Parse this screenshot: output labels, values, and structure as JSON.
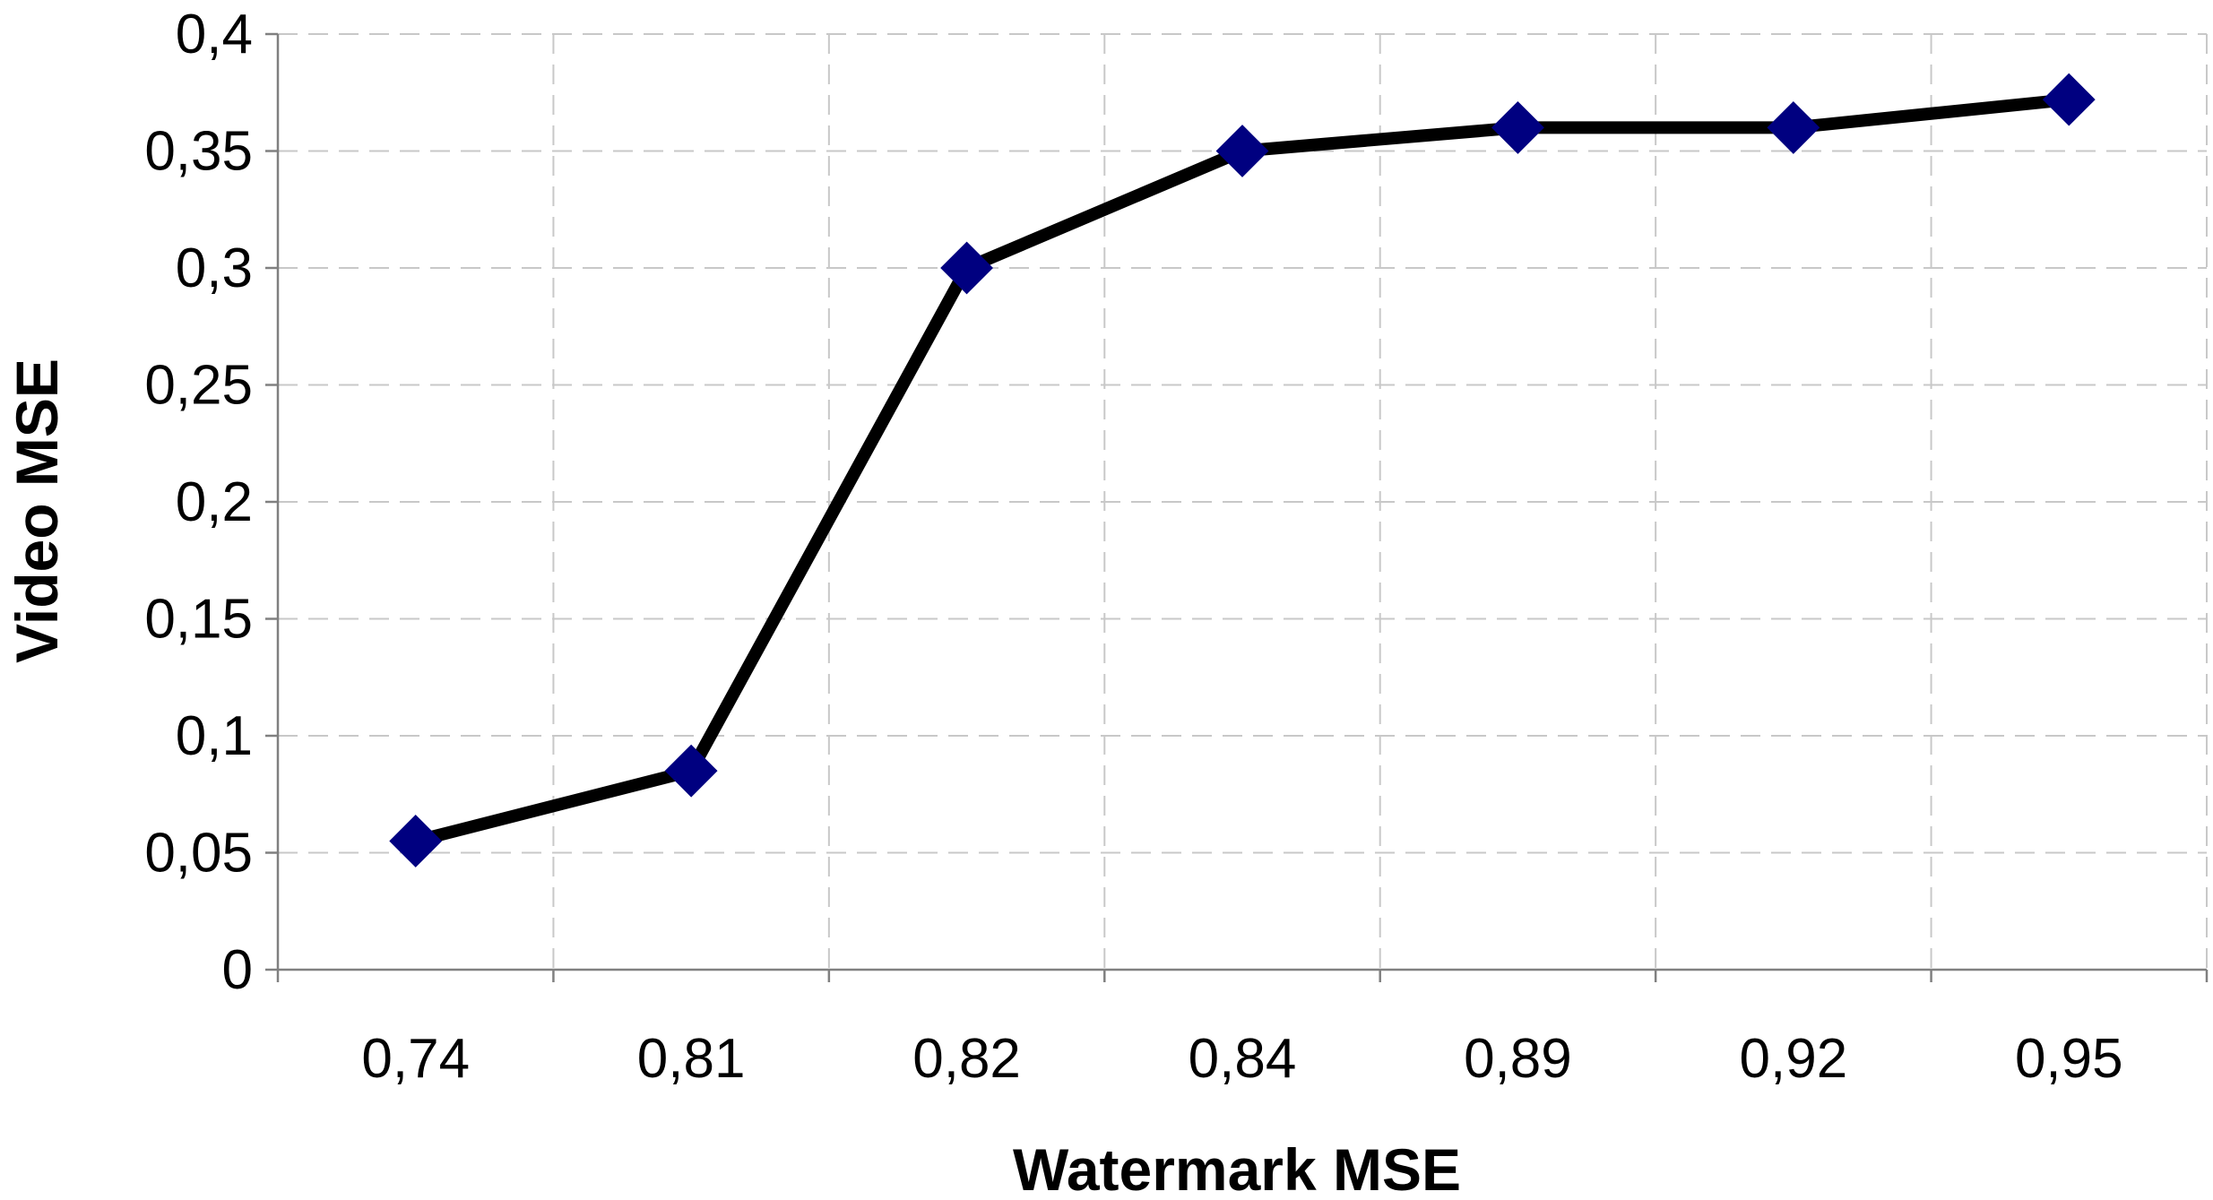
{
  "chart_data": {
    "type": "line",
    "categories": [
      "0,74",
      "0,81",
      "0,82",
      "0,84",
      "0,89",
      "0,92",
      "0,95"
    ],
    "series": [
      {
        "values": [
          0.055,
          0.085,
          0.3,
          0.35,
          0.36,
          0.36,
          0.372
        ]
      }
    ],
    "xlabel": "Watermark MSE",
    "ylabel": "Video MSE",
    "ylim": [
      0,
      0.4
    ],
    "yticks": [
      0,
      0.05,
      0.1,
      0.15,
      0.2,
      0.25,
      0.3,
      0.35,
      0.4
    ],
    "ytick_labels": [
      "0",
      "0,05",
      "0,1",
      "0,15",
      "0,2",
      "0,25",
      "0,3",
      "0,35",
      "0,4"
    ],
    "grid": true,
    "legend": "none",
    "line_color": "#000000",
    "marker": "diamond",
    "marker_color": "#000080"
  }
}
